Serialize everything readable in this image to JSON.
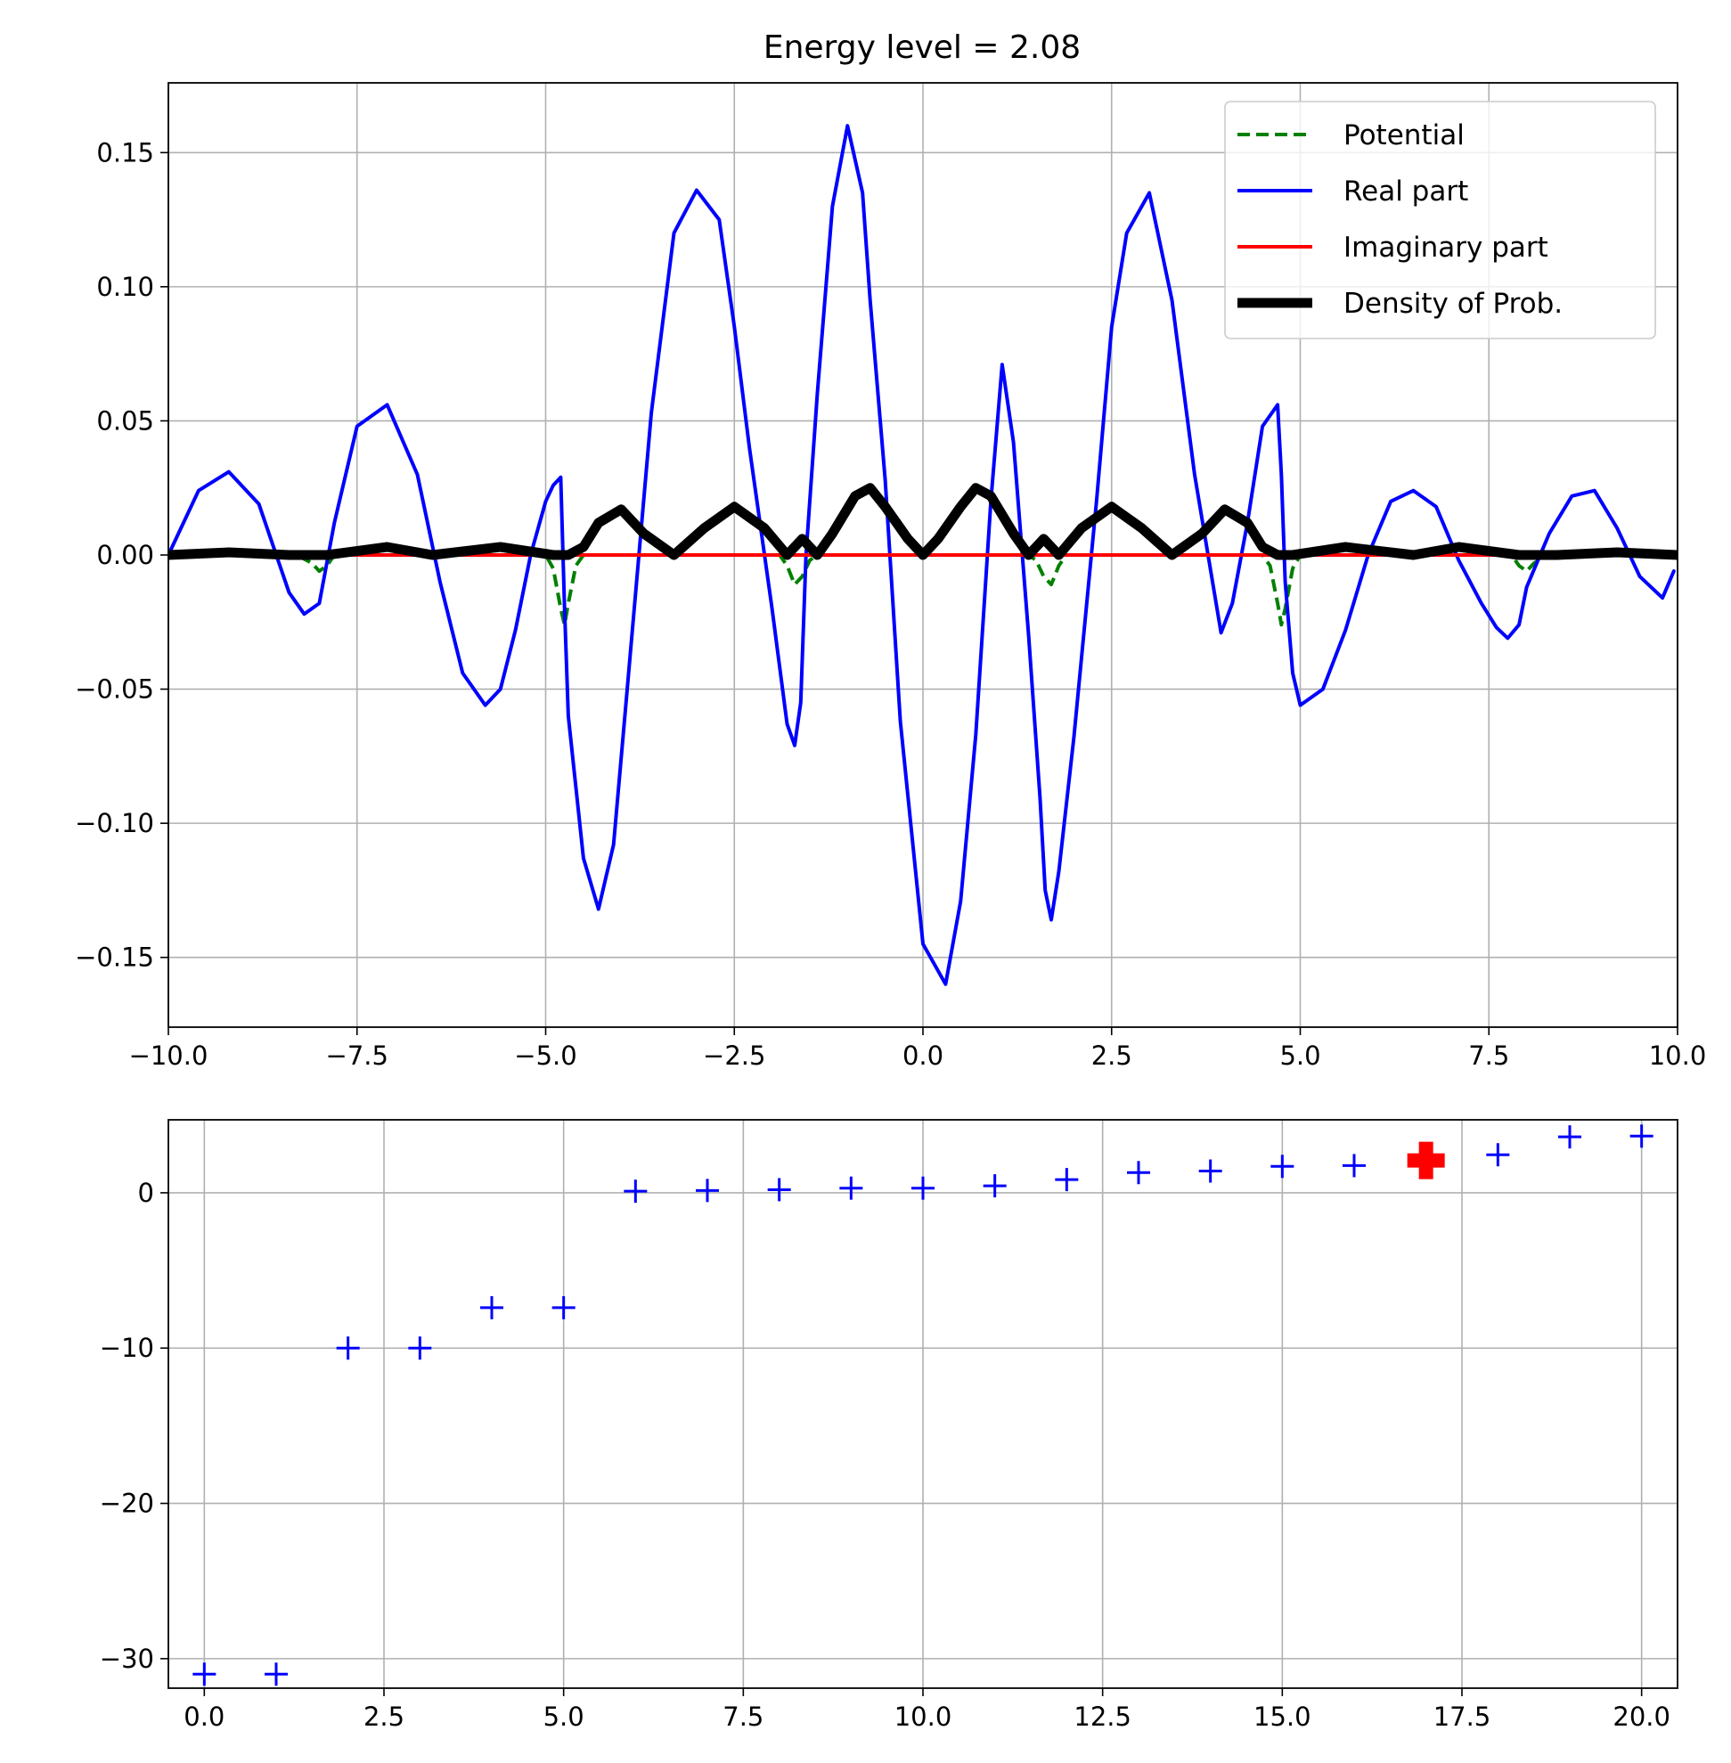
{
  "chart_data": [
    {
      "type": "line",
      "title": "Energy level = 2.08",
      "xlim": [
        -10,
        10
      ],
      "ylim": [
        -0.176,
        0.176
      ],
      "xticks": [
        -10,
        -7.5,
        -5,
        -2.5,
        0,
        2.5,
        5,
        7.5,
        10
      ],
      "xtick_labels": [
        "−10.0",
        "−7.5",
        "−5.0",
        "−2.5",
        "0.0",
        "2.5",
        "5.0",
        "7.5",
        "10.0"
      ],
      "yticks": [
        -0.15,
        -0.1,
        -0.05,
        0,
        0.05,
        0.1,
        0.15
      ],
      "ytick_labels": [
        "−0.15",
        "−0.10",
        "−0.05",
        "0.00",
        "0.05",
        "0.10",
        "0.15"
      ],
      "grid": true,
      "legend_position": "top-right",
      "series": [
        {
          "name": "Potential",
          "color": "#008000",
          "style": "dashed",
          "x": [
            -10,
            -8.3,
            -8.1,
            -8.0,
            -7.9,
            -7.8,
            -5.0,
            -4.9,
            -4.8,
            -4.75,
            -4.7,
            -4.6,
            -4.5,
            -4.0,
            -1.9,
            -1.8,
            -1.7,
            -1.6,
            -1.5,
            -1.4,
            1.4,
            1.5,
            1.6,
            1.7,
            1.8,
            1.9,
            4.5,
            4.6,
            4.7,
            4.75,
            4.8,
            4.9,
            5.0,
            7.8,
            7.9,
            8.0,
            8.1,
            8.3,
            10
          ],
          "y": [
            0,
            0,
            -0.003,
            -0.006,
            -0.004,
            0,
            0,
            -0.005,
            -0.02,
            -0.026,
            -0.018,
            -0.004,
            0,
            0,
            0,
            -0.004,
            -0.011,
            -0.008,
            -0.002,
            0,
            0,
            -0.002,
            -0.008,
            -0.011,
            -0.004,
            0,
            0,
            -0.004,
            -0.018,
            -0.026,
            -0.02,
            -0.005,
            0,
            0,
            -0.004,
            -0.006,
            -0.003,
            0,
            0
          ]
        },
        {
          "name": "Real part",
          "color": "#0000ff",
          "style": "solid",
          "x": [
            -10,
            -9.6,
            -9.2,
            -8.8,
            -8.4,
            -8.2,
            -8.0,
            -7.8,
            -7.5,
            -7.1,
            -6.7,
            -6.4,
            -6.1,
            -5.8,
            -5.6,
            -5.4,
            -5.2,
            -5.0,
            -4.9,
            -4.8,
            -4.75,
            -4.7,
            -4.5,
            -4.3,
            -4.1,
            -3.95,
            -3.6,
            -3.3,
            -3.0,
            -2.7,
            -2.5,
            -2.3,
            -2.0,
            -1.8,
            -1.7,
            -1.62,
            -1.55,
            -1.4,
            -1.2,
            -1.0,
            -0.8,
            -0.7,
            -0.5,
            -0.3,
            0.0,
            0.3,
            0.5,
            0.7,
            0.9,
            1.05,
            1.2,
            1.4,
            1.55,
            1.62,
            1.7,
            1.8,
            2.0,
            2.3,
            2.5,
            2.7,
            3.0,
            3.3,
            3.6,
            3.95,
            4.1,
            4.3,
            4.5,
            4.7,
            4.75,
            4.8,
            4.9,
            5.0,
            5.3,
            5.6,
            5.9,
            6.2,
            6.5,
            6.8,
            7.1,
            7.4,
            7.6,
            7.75,
            7.9,
            8.0,
            8.3,
            8.6,
            8.9,
            9.2,
            9.5,
            9.8,
            9.95
          ],
          "y": [
            0.0,
            0.024,
            0.031,
            0.019,
            -0.014,
            -0.022,
            -0.018,
            0.012,
            0.048,
            0.056,
            0.03,
            -0.01,
            -0.044,
            -0.056,
            -0.05,
            -0.028,
            0.0,
            0.02,
            0.026,
            0.029,
            -0.02,
            -0.06,
            -0.113,
            -0.132,
            -0.108,
            -0.06,
            0.053,
            0.12,
            0.136,
            0.125,
            0.085,
            0.04,
            -0.02,
            -0.063,
            -0.071,
            -0.055,
            0.0,
            0.06,
            0.13,
            0.16,
            0.135,
            0.095,
            0.028,
            -0.062,
            -0.145,
            -0.16,
            -0.129,
            -0.067,
            0.02,
            0.071,
            0.042,
            -0.03,
            -0.09,
            -0.125,
            -0.136,
            -0.118,
            -0.068,
            0.02,
            0.085,
            0.12,
            0.135,
            0.095,
            0.03,
            -0.029,
            -0.018,
            0.012,
            0.048,
            0.056,
            0.03,
            -0.01,
            -0.044,
            -0.056,
            -0.05,
            -0.028,
            0.0,
            0.02,
            0.024,
            0.018,
            -0.002,
            -0.018,
            -0.027,
            -0.031,
            -0.026,
            -0.012,
            0.008,
            0.022,
            0.024,
            0.01,
            -0.008,
            -0.016,
            -0.006
          ]
        },
        {
          "name": "Imaginary part",
          "color": "#ff0000",
          "style": "solid",
          "x": [
            -10,
            10
          ],
          "y": [
            0,
            0
          ]
        },
        {
          "name": "Density of Prob.",
          "color": "#000000",
          "style": "solid-thick",
          "x": [
            -10,
            -9.2,
            -8.4,
            -7.9,
            -7.1,
            -6.5,
            -5.6,
            -4.9,
            -4.7,
            -4.5,
            -4.3,
            -4.0,
            -3.7,
            -3.3,
            -2.9,
            -2.5,
            -2.1,
            -1.8,
            -1.6,
            -1.4,
            -1.2,
            -0.9,
            -0.7,
            -0.5,
            -0.2,
            0.0,
            0.2,
            0.5,
            0.7,
            0.9,
            1.2,
            1.4,
            1.6,
            1.8,
            2.1,
            2.5,
            2.9,
            3.3,
            3.7,
            4.0,
            4.3,
            4.5,
            4.7,
            4.9,
            5.6,
            6.5,
            7.1,
            7.9,
            8.4,
            9.2,
            10
          ],
          "y": [
            0.0,
            0.001,
            0.0,
            0.0,
            0.003,
            0.0,
            0.003,
            0.0,
            0.0,
            0.003,
            0.012,
            0.017,
            0.008,
            0.0,
            0.01,
            0.018,
            0.01,
            0.0,
            0.006,
            0.0,
            0.008,
            0.022,
            0.025,
            0.018,
            0.006,
            0.0,
            0.006,
            0.018,
            0.025,
            0.022,
            0.008,
            0.0,
            0.006,
            0.0,
            0.01,
            0.018,
            0.01,
            0.0,
            0.008,
            0.017,
            0.012,
            0.003,
            0.0,
            0.0,
            0.003,
            0.0,
            0.003,
            0.0,
            0.0,
            0.001,
            0.0
          ]
        }
      ]
    },
    {
      "type": "scatter",
      "xlim": [
        -0.5,
        20.5
      ],
      "ylim": [
        -31.9,
        4.7
      ],
      "xticks": [
        0,
        2.5,
        5,
        7.5,
        10,
        12.5,
        15,
        17.5,
        20
      ],
      "xtick_labels": [
        "0.0",
        "2.5",
        "5.0",
        "7.5",
        "10.0",
        "12.5",
        "15.0",
        "17.5",
        "20.0"
      ],
      "yticks": [
        -30,
        -20,
        -10,
        0
      ],
      "ytick_labels": [
        "−30",
        "−20",
        "−10",
        "0"
      ],
      "grid": true,
      "series": [
        {
          "color": "#0000ff",
          "marker": "plus",
          "x": [
            0,
            1,
            2,
            3,
            4,
            5,
            6,
            7,
            8,
            9,
            10,
            11,
            12,
            13,
            14,
            15,
            16,
            17,
            18,
            19,
            20
          ],
          "y": [
            -31,
            -31,
            -10,
            -10,
            -7.4,
            -7.4,
            0.1,
            0.15,
            0.2,
            0.3,
            0.3,
            0.45,
            0.85,
            1.3,
            1.4,
            1.7,
            1.75,
            2.08,
            2.45,
            3.6,
            3.65
          ]
        },
        {
          "color": "#ff0000",
          "marker": "plus-thick",
          "x": [
            17
          ],
          "y": [
            2.08
          ]
        }
      ]
    }
  ]
}
